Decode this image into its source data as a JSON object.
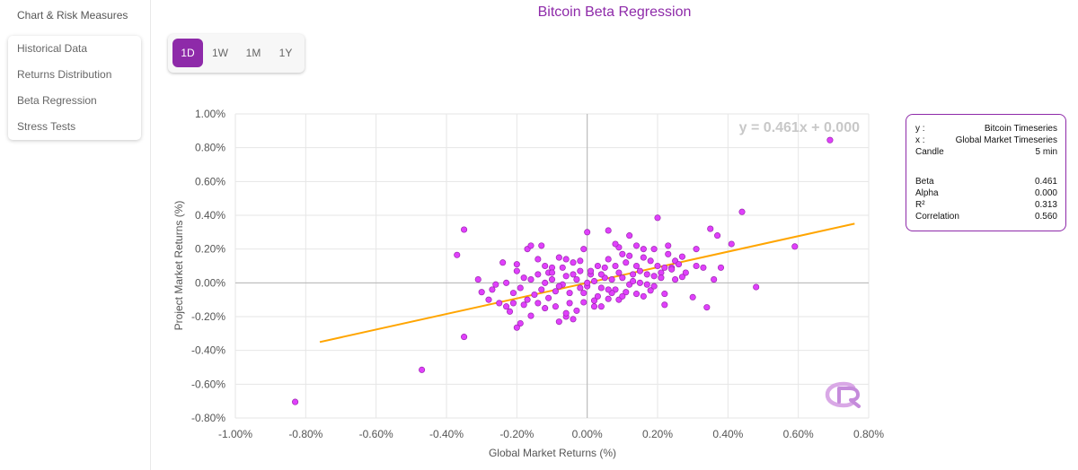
{
  "sidebar": {
    "title": "Chart & Risk Measures",
    "items": [
      {
        "label": "Historical Data"
      },
      {
        "label": "Returns Distribution"
      },
      {
        "label": "Beta Regression"
      },
      {
        "label": "Stress Tests"
      }
    ]
  },
  "periods": {
    "buttons": [
      {
        "label": "1D",
        "active": true
      },
      {
        "label": "1W",
        "active": false
      },
      {
        "label": "1M",
        "active": false
      },
      {
        "label": "1Y",
        "active": false
      }
    ],
    "accent_color": "#8e2aa9"
  },
  "info": {
    "y_label": "y :",
    "y_value": "Bitcoin Timeseries",
    "x_label": "x :",
    "x_value": "Global Market Timeseries",
    "candle_label": "Candle",
    "candle_value": "5 min",
    "beta_label": "Beta",
    "beta_value": "0.461",
    "alpha_label": "Alpha",
    "alpha_value": "0.000",
    "r2_label": "R²",
    "r2_value": "0.313",
    "corr_label": "Correlation",
    "corr_value": "0.560"
  },
  "logo_icon": "cr-logo-icon",
  "chart_data": {
    "type": "scatter",
    "title": "Bitcoin Beta Regression",
    "xlabel": "Global Market Returns (%)",
    "ylabel": "Project Market Returns (%)",
    "equation": "y = 0.461x + 0.000",
    "xlim": [
      -1.0,
      0.8
    ],
    "ylim": [
      -0.8,
      1.0
    ],
    "x_ticks": [
      "-1.00%",
      "-0.80%",
      "-0.60%",
      "-0.40%",
      "-0.20%",
      "0.00%",
      "0.20%",
      "0.40%",
      "0.60%",
      "0.80%"
    ],
    "y_ticks": [
      "1.00%",
      "0.80%",
      "0.60%",
      "0.40%",
      "0.20%",
      "0.00%",
      "-0.20%",
      "-0.40%",
      "-0.60%",
      "-0.80%"
    ],
    "grid": true,
    "point_color": "#e040fb",
    "line_color": "#ffa500",
    "regression": {
      "slope": 0.461,
      "intercept": 0.0,
      "x_range": [
        -0.76,
        0.76
      ]
    },
    "points": [
      [
        -0.83,
        -0.705
      ],
      [
        -0.47,
        -0.515
      ],
      [
        -0.35,
        -0.32
      ],
      [
        -0.37,
        0.165
      ],
      [
        -0.35,
        0.315
      ],
      [
        0.69,
        0.845
      ],
      [
        0.59,
        0.215
      ],
      [
        0.48,
        -0.025
      ],
      [
        0.44,
        0.42
      ],
      [
        0.41,
        0.23
      ],
      [
        0.37,
        0.28
      ],
      [
        0.35,
        0.32
      ],
      [
        0.34,
        -0.145
      ],
      [
        0.31,
        0.2
      ],
      [
        0.31,
        0.1
      ],
      [
        0.3,
        -0.085
      ],
      [
        0.33,
        0.09
      ],
      [
        0.36,
        0.02
      ],
      [
        0.38,
        0.09
      ],
      [
        0.27,
        0.155
      ],
      [
        0.27,
        0.035
      ],
      [
        0.25,
        0.13
      ],
      [
        0.24,
        0.09
      ],
      [
        0.23,
        0.22
      ],
      [
        0.2,
        0.385
      ],
      [
        0.19,
        0.2
      ],
      [
        0.16,
        0.2
      ],
      [
        0.12,
        0.28
      ],
      [
        0.09,
        0.21
      ],
      [
        0.08,
        0.23
      ],
      [
        0.06,
        0.31
      ],
      [
        0.0,
        0.3
      ],
      [
        -0.01,
        0.2
      ],
      [
        0.22,
        -0.13
      ],
      [
        0.22,
        -0.065
      ],
      [
        0.18,
        -0.045
      ],
      [
        0.14,
        -0.065
      ],
      [
        0.11,
        -0.055
      ],
      [
        0.09,
        -0.1
      ],
      [
        0.06,
        -0.095
      ],
      [
        0.04,
        -0.14
      ],
      [
        0.02,
        -0.105
      ],
      [
        -0.01,
        -0.115
      ],
      [
        -0.03,
        -0.165
      ],
      [
        -0.04,
        -0.215
      ],
      [
        -0.06,
        -0.2
      ],
      [
        -0.08,
        -0.23
      ],
      [
        -0.12,
        -0.15
      ],
      [
        -0.14,
        -0.12
      ],
      [
        -0.16,
        -0.195
      ],
      [
        -0.19,
        -0.24
      ],
      [
        -0.2,
        -0.265
      ],
      [
        -0.21,
        -0.12
      ],
      [
        -0.23,
        -0.14
      ],
      [
        -0.25,
        -0.12
      ],
      [
        -0.27,
        -0.04
      ],
      [
        -0.26,
        -0.01
      ],
      [
        -0.3,
        -0.055
      ],
      [
        -0.31,
        0.02
      ],
      [
        -0.24,
        0.12
      ],
      [
        -0.2,
        0.07
      ],
      [
        -0.17,
        0.2
      ],
      [
        -0.16,
        0.22
      ],
      [
        -0.13,
        0.22
      ],
      [
        -0.12,
        0.1
      ],
      [
        -0.1,
        0.09
      ],
      [
        -0.08,
        0.15
      ],
      [
        -0.06,
        0.14
      ],
      [
        -0.04,
        0.12
      ],
      [
        -0.02,
        0.07
      ],
      [
        0.01,
        0.05
      ],
      [
        0.03,
        0.1
      ],
      [
        0.05,
        0.09
      ],
      [
        0.07,
        0.02
      ],
      [
        0.1,
        0.03
      ],
      [
        0.13,
        0.05
      ],
      [
        0.15,
        0.0
      ],
      [
        0.17,
        0.05
      ],
      [
        0.2,
        0.1
      ],
      [
        0.21,
        0.06
      ],
      [
        0.19,
        -0.02
      ],
      [
        0.16,
        -0.08
      ],
      [
        0.12,
        -0.01
      ],
      [
        0.08,
        -0.04
      ],
      [
        0.04,
        -0.03
      ],
      [
        0.02,
        0.01
      ],
      [
        0.0,
        -0.02
      ],
      [
        -0.02,
        -0.03
      ],
      [
        -0.05,
        -0.06
      ],
      [
        -0.07,
        -0.01
      ],
      [
        -0.09,
        -0.05
      ],
      [
        -0.11,
        -0.09
      ],
      [
        -0.13,
        -0.04
      ],
      [
        -0.15,
        -0.07
      ],
      [
        -0.17,
        -0.1
      ],
      [
        -0.19,
        -0.03
      ],
      [
        -0.21,
        -0.06
      ],
      [
        -0.23,
        0.0
      ],
      [
        -0.18,
        0.03
      ],
      [
        -0.14,
        0.05
      ],
      [
        -0.1,
        0.02
      ],
      [
        -0.06,
        0.04
      ],
      [
        -0.03,
        0.02
      ],
      [
        0.01,
        0.07
      ],
      [
        0.05,
        0.03
      ],
      [
        0.09,
        0.06
      ],
      [
        0.11,
        0.12
      ],
      [
        0.14,
        0.1
      ],
      [
        0.18,
        0.13
      ],
      [
        0.23,
        0.17
      ],
      [
        0.26,
        0.11
      ],
      [
        0.21,
        0.03
      ],
      [
        0.17,
        -0.01
      ],
      [
        0.13,
        0.01
      ],
      [
        0.07,
        -0.06
      ],
      [
        0.03,
        -0.08
      ],
      [
        -0.01,
        -0.06
      ],
      [
        -0.05,
        -0.12
      ],
      [
        -0.09,
        -0.14
      ],
      [
        -0.11,
        0.06
      ],
      [
        -0.07,
        0.09
      ],
      [
        -0.04,
        0.05
      ],
      [
        0.0,
        0.0
      ],
      [
        0.04,
        0.05
      ],
      [
        0.08,
        0.1
      ],
      [
        0.12,
        0.16
      ],
      [
        0.15,
        0.07
      ],
      [
        0.19,
        0.04
      ],
      [
        0.24,
        0.08
      ],
      [
        0.28,
        0.06
      ],
      [
        -0.16,
        0.02
      ],
      [
        -0.12,
        0.0
      ],
      [
        -0.08,
        -0.02
      ],
      [
        -0.18,
        -0.13
      ],
      [
        -0.22,
        -0.17
      ],
      [
        -0.28,
        -0.1
      ],
      [
        -0.2,
        0.11
      ],
      [
        0.06,
        0.14
      ],
      [
        0.1,
        0.17
      ],
      [
        0.16,
        0.15
      ],
      [
        -0.02,
        0.13
      ],
      [
        0.02,
        -0.14
      ],
      [
        -0.06,
        -0.18
      ],
      [
        0.1,
        -0.08
      ],
      [
        0.14,
        0.22
      ],
      [
        0.22,
        0.09
      ],
      [
        0.25,
        0.02
      ],
      [
        -0.14,
        0.14
      ],
      [
        -0.1,
        0.06
      ],
      [
        0.06,
        -0.04
      ]
    ]
  }
}
